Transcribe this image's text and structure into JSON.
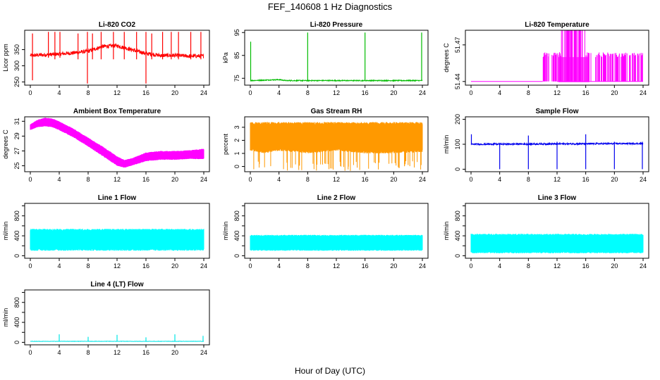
{
  "figure": {
    "title": "FEF_140608  1 Hz Diagnostics",
    "xlabel": "Hour of Day (UTC)"
  },
  "chart_data": [
    {
      "id": "co2",
      "type": "line",
      "title": "Li-820 CO2",
      "ylabel": "Licor ppm",
      "color": "#ff0000",
      "xlim": [
        0,
        24
      ],
      "ylim": [
        240,
        410
      ],
      "xticks": [
        0,
        4,
        8,
        12,
        16,
        20,
        24
      ],
      "yticks": [
        250,
        300,
        350
      ],
      "baseline": [
        [
          0,
          332
        ],
        [
          3,
          335
        ],
        [
          6,
          340
        ],
        [
          8,
          345
        ],
        [
          10,
          360
        ],
        [
          12,
          362
        ],
        [
          14,
          350
        ],
        [
          16,
          338
        ],
        [
          18,
          332
        ],
        [
          20,
          332
        ],
        [
          22,
          330
        ],
        [
          24,
          330
        ]
      ],
      "noise": 6,
      "spikes": [
        [
          0.3,
          400,
          255
        ],
        [
          2.5,
          405,
          325
        ],
        [
          3.4,
          405,
          320
        ],
        [
          4.1,
          405,
          325
        ],
        [
          6.6,
          400,
          320
        ],
        [
          7.9,
          405,
          245
        ],
        [
          8.6,
          400,
          320
        ],
        [
          9.8,
          405,
          320
        ],
        [
          11.5,
          405,
          320
        ],
        [
          13.0,
          405,
          320
        ],
        [
          14.7,
          405,
          320
        ],
        [
          16.0,
          405,
          245
        ],
        [
          16.8,
          400,
          320
        ],
        [
          18.3,
          405,
          320
        ],
        [
          19.5,
          405,
          320
        ],
        [
          20.5,
          405,
          320
        ],
        [
          22.2,
          405,
          320
        ],
        [
          23.6,
          405,
          320
        ]
      ]
    },
    {
      "id": "pressure",
      "type": "line",
      "title": "Li-820 Pressure",
      "ylabel": "kPa",
      "color": "#00bb00",
      "xlim": [
        0,
        24
      ],
      "ylim": [
        72,
        96
      ],
      "xticks": [
        0,
        4,
        8,
        12,
        16,
        20,
        24
      ],
      "yticks": [
        75,
        85,
        95
      ],
      "baseline": [
        [
          0,
          74
        ],
        [
          4,
          74.4
        ],
        [
          5,
          74.0
        ],
        [
          8,
          74.0
        ],
        [
          12,
          74.0
        ],
        [
          16,
          74.0
        ],
        [
          20,
          74.0
        ],
        [
          24,
          74.0
        ]
      ],
      "noise": 0.2,
      "spikes": [
        [
          0.05,
          91,
          74
        ],
        [
          8.0,
          95,
          74
        ],
        [
          16.0,
          95,
          74
        ],
        [
          23.9,
          95,
          74
        ]
      ]
    },
    {
      "id": "licor_temp",
      "type": "line",
      "title": "Li-820 Temperature",
      "ylabel": "degrees C",
      "color": "#ff00ff",
      "xlim": [
        0,
        24
      ],
      "ylim": [
        51.437,
        51.482
      ],
      "xticks": [
        0,
        4,
        8,
        12,
        16,
        20,
        24
      ],
      "yticks": [
        51.44,
        51.47
      ],
      "levels": [
        51.44,
        51.46
      ],
      "active_range": [
        10,
        24
      ]
    },
    {
      "id": "ambient_temp",
      "type": "area",
      "title": "Ambient Box Temperature",
      "ylabel": "degrees C",
      "color": "#ff00ff",
      "xlim": [
        0,
        24
      ],
      "ylim": [
        24.2,
        31.6
      ],
      "xticks": [
        0,
        4,
        8,
        12,
        16,
        20,
        24
      ],
      "yticks": [
        25,
        27,
        29,
        31
      ],
      "upper": [
        [
          0,
          30.6
        ],
        [
          1,
          31.2
        ],
        [
          2,
          31.5
        ],
        [
          3,
          31.4
        ],
        [
          4,
          31.0
        ],
        [
          6,
          30.0
        ],
        [
          8,
          28.8
        ],
        [
          10,
          27.6
        ],
        [
          12,
          26.3
        ],
        [
          13,
          25.8
        ],
        [
          14,
          26.0
        ],
        [
          16,
          26.8
        ],
        [
          18,
          27.0
        ],
        [
          20,
          27.0
        ],
        [
          22,
          27.1
        ],
        [
          24,
          27.3
        ]
      ],
      "lower": [
        [
          0,
          29.8
        ],
        [
          1,
          30.2
        ],
        [
          2,
          30.3
        ],
        [
          3,
          30.2
        ],
        [
          4,
          29.8
        ],
        [
          6,
          28.8
        ],
        [
          8,
          27.6
        ],
        [
          10,
          26.3
        ],
        [
          12,
          25.0
        ],
        [
          13,
          24.7
        ],
        [
          14,
          25.0
        ],
        [
          16,
          25.6
        ],
        [
          18,
          25.8
        ],
        [
          20,
          25.8
        ],
        [
          22,
          25.9
        ],
        [
          24,
          25.9
        ]
      ]
    },
    {
      "id": "rh",
      "type": "area",
      "title": "Gas Stream RH",
      "ylabel": "percent",
      "color": "#ff9900",
      "xlim": [
        0,
        24
      ],
      "ylim": [
        -0.4,
        3.8
      ],
      "xticks": [
        0,
        4,
        8,
        12,
        16,
        20,
        24
      ],
      "yticks": [
        0,
        1,
        2,
        3
      ],
      "upper": [
        [
          0,
          3.4
        ],
        [
          24,
          3.4
        ]
      ],
      "lower": [
        [
          0,
          1.2
        ],
        [
          2,
          1.0
        ],
        [
          4,
          1.2
        ],
        [
          8,
          1.0
        ],
        [
          12,
          1.2
        ],
        [
          16,
          1.0
        ],
        [
          20,
          1.0
        ],
        [
          24,
          1.1
        ]
      ],
      "dips": 60
    },
    {
      "id": "sample_flow",
      "type": "line",
      "title": "Sample Flow",
      "ylabel": "ml/min",
      "color": "#0000ee",
      "xlim": [
        0,
        24
      ],
      "ylim": [
        -10,
        210
      ],
      "xticks": [
        0,
        4,
        8,
        12,
        16,
        20,
        24
      ],
      "yticks": [
        0,
        100,
        200
      ],
      "baseline": [
        [
          0,
          100
        ],
        [
          24,
          103
        ]
      ],
      "noise": 3,
      "spikes": [
        [
          0.05,
          140,
          100
        ],
        [
          4.0,
          100,
          0
        ],
        [
          8.0,
          135,
          0
        ],
        [
          12.0,
          110,
          0
        ],
        [
          16.0,
          140,
          0
        ],
        [
          20.0,
          110,
          0
        ],
        [
          23.9,
          110,
          0
        ]
      ]
    },
    {
      "id": "line1",
      "type": "area",
      "title": "Line 1 Flow",
      "ylabel": "ml/min",
      "color": "#00ffff",
      "xlim": [
        0,
        24
      ],
      "ylim": [
        -50,
        1050
      ],
      "xticks": [
        0,
        4,
        8,
        12,
        16,
        20,
        24
      ],
      "yticks": [
        0,
        200,
        400,
        600,
        800,
        1000
      ],
      "ytick_labels": [
        "0",
        "",
        "400",
        "",
        "800",
        ""
      ],
      "upper": [
        [
          0,
          540
        ],
        [
          24,
          540
        ]
      ],
      "lower": [
        [
          0,
          100
        ],
        [
          24,
          100
        ]
      ]
    },
    {
      "id": "line2",
      "type": "area",
      "title": "Line 2 Flow",
      "ylabel": "ml/min",
      "color": "#00ffff",
      "xlim": [
        0,
        24
      ],
      "ylim": [
        -50,
        1050
      ],
      "xticks": [
        0,
        4,
        8,
        12,
        16,
        20,
        24
      ],
      "yticks": [
        0,
        200,
        400,
        600,
        800,
        1000
      ],
      "ytick_labels": [
        "0",
        "",
        "400",
        "",
        "800",
        ""
      ],
      "upper": [
        [
          0,
          420
        ],
        [
          24,
          420
        ]
      ],
      "lower": [
        [
          0,
          100
        ],
        [
          24,
          100
        ]
      ]
    },
    {
      "id": "line3",
      "type": "area",
      "title": "Line 3 Flow",
      "ylabel": "ml/min",
      "color": "#00ffff",
      "xlim": [
        0,
        24
      ],
      "ylim": [
        -50,
        1050
      ],
      "xticks": [
        0,
        4,
        8,
        12,
        16,
        20,
        24
      ],
      "yticks": [
        0,
        200,
        400,
        600,
        800,
        1000
      ],
      "ytick_labels": [
        "0",
        "",
        "400",
        "",
        "800",
        ""
      ],
      "upper": [
        [
          0,
          440
        ],
        [
          24,
          440
        ]
      ],
      "lower": [
        [
          0,
          50
        ],
        [
          24,
          50
        ]
      ]
    },
    {
      "id": "line4",
      "type": "line",
      "title": "Line 4 (LT) Flow",
      "ylabel": "ml/min",
      "color": "#00e5e5",
      "xlim": [
        0,
        24
      ],
      "ylim": [
        -50,
        1050
      ],
      "xticks": [
        0,
        4,
        8,
        12,
        16,
        20,
        24
      ],
      "yticks": [
        0,
        200,
        400,
        600,
        800,
        1000
      ],
      "ytick_labels": [
        "0",
        "",
        "400",
        "",
        "800",
        ""
      ],
      "baseline": [
        [
          0,
          20
        ],
        [
          24,
          20
        ]
      ],
      "noise": 3,
      "spikes": [
        [
          4.0,
          160,
          20
        ],
        [
          8.0,
          110,
          20
        ],
        [
          12.0,
          150,
          20
        ],
        [
          16.0,
          100,
          20
        ],
        [
          20.0,
          160,
          20
        ],
        [
          23.9,
          130,
          20
        ]
      ]
    }
  ]
}
